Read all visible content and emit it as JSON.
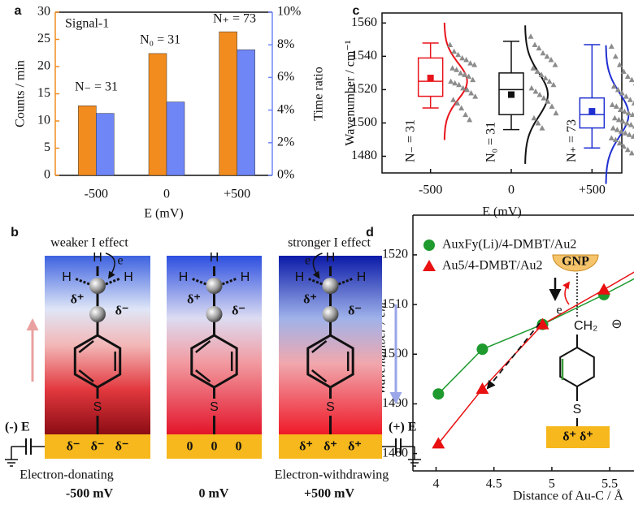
{
  "chart_data": [
    {
      "type": "bar",
      "panel_label": "a",
      "categories": [
        "-500",
        "0",
        "+500"
      ],
      "xlabel": "E (mV)",
      "ylabel": "Counts / min",
      "y2label": "Time ratio",
      "series": [
        {
          "color": "#f28c1e",
          "values": [
            12.8,
            22.4,
            26.4
          ]
        },
        {
          "color": "#6f86f7",
          "axis": "y2",
          "values": [
            3.8,
            4.5,
            7.7
          ]
        }
      ],
      "ylim": [
        0,
        30
      ],
      "yticks": [
        0,
        5,
        10,
        15,
        20,
        25,
        30
      ],
      "y2lim": [
        0,
        10
      ],
      "y2ticks": [
        {
          "value": 0,
          "label": "0%"
        },
        {
          "value": 2,
          "label": "2%"
        },
        {
          "value": 4,
          "label": "4%"
        },
        {
          "value": 6,
          "label": "6%"
        },
        {
          "value": 8,
          "label": "8%"
        },
        {
          "value": 10,
          "label": "10%"
        }
      ],
      "annotations": [
        "Signal-1",
        "N₋ = 31",
        "N₀ = 31",
        "N₊ = 73"
      ]
    },
    {
      "type": "box",
      "panel_label": "c",
      "categories": [
        "-500",
        "0",
        "+500"
      ],
      "xlabel": "E (mV)",
      "ylabel": "Wavenumber / cm⁻¹",
      "ylim": [
        1470,
        1566
      ],
      "yticks": [
        1480,
        1500,
        1520,
        1540,
        1560
      ],
      "point_color": "#8c8c8c",
      "groups": [
        {
          "name": "N₋ = 31",
          "color": "#e8141b",
          "whislo": 1509,
          "q1": 1516,
          "med": 1525,
          "q3": 1539,
          "whishi": 1548,
          "mean": 1527,
          "fit_center": 1525,
          "fit_sd": 11,
          "points": [
            1547,
            1543,
            1541,
            1539,
            1538,
            1536,
            1535,
            1533,
            1532,
            1530,
            1529,
            1528,
            1526,
            1525,
            1524,
            1523,
            1521,
            1520,
            1518,
            1516,
            1514,
            1512,
            1509,
            1505,
            1502
          ]
        },
        {
          "name": "N₀ = 31",
          "color": "#111111",
          "whislo": 1496,
          "q1": 1505,
          "med": 1520,
          "q3": 1530,
          "whishi": 1549,
          "mean": 1517,
          "fit_center": 1517,
          "fit_sd": 13,
          "points": [
            1552,
            1547,
            1545,
            1542,
            1540,
            1538,
            1535,
            1533,
            1531,
            1529,
            1527,
            1525,
            1523,
            1521,
            1519,
            1517,
            1515,
            1513,
            1510,
            1506,
            1503,
            1500,
            1497
          ]
        },
        {
          "name": "N₊ = 73",
          "color": "#1f2fd0",
          "whislo": 1485,
          "q1": 1497,
          "med": 1505,
          "q3": 1515,
          "whishi": 1547,
          "mean": 1507,
          "fit_center": 1505,
          "fit_sd": 13,
          "points": [
            1546,
            1540,
            1535,
            1531,
            1528,
            1526,
            1524,
            1522,
            1520,
            1518,
            1516,
            1514,
            1512,
            1511,
            1510,
            1508,
            1507,
            1506,
            1505,
            1504,
            1503,
            1502,
            1501,
            1500,
            1499,
            1498,
            1497,
            1496,
            1495,
            1494,
            1493,
            1492,
            1491,
            1490,
            1488,
            1486,
            1484,
            1482
          ]
        }
      ]
    },
    {
      "type": "line",
      "panel_label": "d",
      "xlabel": "Distance of Au-C / Å",
      "ylabel": "Wavenumber / cm⁻¹",
      "legend": "upper left",
      "x": [
        4.02,
        4.4,
        4.92,
        5.45,
        "∞"
      ],
      "xlim": [
        3.8,
        5.85
      ],
      "xticks": [
        4,
        4.5,
        5,
        5.5,
        "∞"
      ],
      "ylim": [
        1476.5,
        1528
      ],
      "yticks": [
        1480,
        1490,
        1500,
        1510,
        1520
      ],
      "series": [
        {
          "name": "AuxFy(Li)/4-DMBT/Au2",
          "color": "#1e9a2e",
          "marker": "circle",
          "values": [
            1492,
            1501,
            1506,
            1512,
            1521
          ]
        },
        {
          "name": "Au5/4-DMBT/Au2",
          "color": "#e81010",
          "marker": "triangle",
          "values": [
            1482,
            1493,
            1506,
            1513,
            1523
          ]
        }
      ]
    }
  ],
  "diagram_b": {
    "panel_label": "b",
    "left_title": "weaker I effect",
    "right_title": "stronger I effect",
    "hydrogen": "H",
    "sulfur": "S",
    "delta_plus": "δ⁺",
    "delta_minus": "δ⁻",
    "electron": "e",
    "left_electrode": "(-) E",
    "right_electrode": "(+) E",
    "surface_charges": [
      "δ⁻",
      "0",
      "δ⁺"
    ],
    "captions": [
      "Electron-donating",
      "Electron-withdrawing"
    ],
    "potentials": [
      "-500 mV",
      "0 mV",
      "+500 mV"
    ]
  },
  "inset_d": {
    "particle": "GNP",
    "electron": "e",
    "group": "CH₂",
    "charge": "⊖",
    "sulfur": "S",
    "surface": "δ⁺  δ⁺"
  }
}
